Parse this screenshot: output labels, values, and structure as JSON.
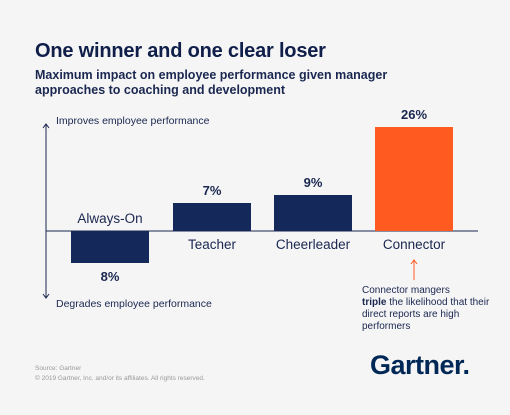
{
  "title": "One winner and one clear loser",
  "subtitle": "Maximum impact on employee performance given manager approaches to coaching and development",
  "chart_data": {
    "type": "bar",
    "categories": [
      "Always-On",
      "Teacher",
      "Cheerleader",
      "Connector"
    ],
    "values": [
      -8,
      7,
      9,
      26
    ],
    "value_labels": [
      "8%",
      "7%",
      "9%",
      "26%"
    ],
    "unit": "%",
    "axis_top_label": "Improves employee performance",
    "axis_bottom_label": "Degrades employee performance",
    "ylim": [
      -10,
      28
    ],
    "grid": false,
    "colors": {
      "default": "#15285a",
      "highlight": "#ff5a1f"
    },
    "highlight_category": "Connector"
  },
  "callout": {
    "before": "Connector mangers",
    "bold": "triple",
    "after": "the likelihood that their direct reports are high performers",
    "arrow_color": "#ff5a1f"
  },
  "source_line": "Source: Gartner",
  "copyright_line": "© 2019 Gartner, Inc. and/or its affiliates. All rights reserved.",
  "logo_text": "Gartner",
  "logo_mark": "."
}
